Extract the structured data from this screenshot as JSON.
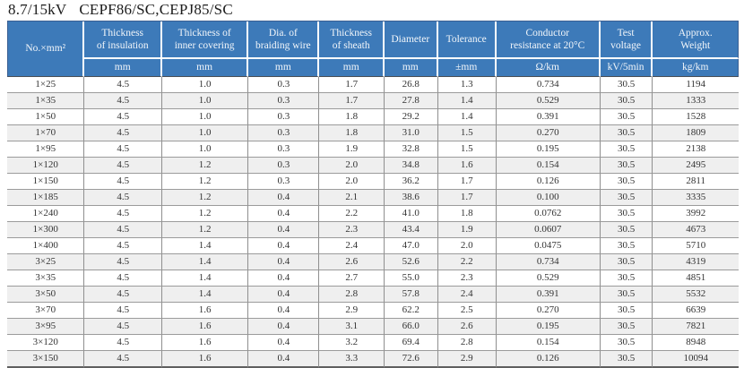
{
  "title": {
    "voltage": "8.7/15kV",
    "model": "CEPF86/SC,CEPJ85/SC"
  },
  "colors": {
    "header_bg": "#3d7ab9",
    "header_text": "#f2f6fa",
    "stripe": "#efefef",
    "grid": "#9b9b9b"
  },
  "table": {
    "corner_label": "No.×mm²",
    "columns": [
      {
        "label": "Thickness\nof insulation",
        "unit": "mm"
      },
      {
        "label": "Thickness of\ninner covering",
        "unit": "mm"
      },
      {
        "label": "Dia. of\nbraiding wire",
        "unit": "mm"
      },
      {
        "label": "Thickness\nof sheath",
        "unit": "mm"
      },
      {
        "label": "Diameter",
        "unit": "mm"
      },
      {
        "label": "Tolerance",
        "unit": "±mm"
      },
      {
        "label": "Conductor\nresistance at 20°C",
        "unit": "Ω/km"
      },
      {
        "label": "Test\nvoltage",
        "unit": "kV/5min"
      },
      {
        "label": "Approx.\nWeight",
        "unit": "kg/km"
      }
    ],
    "rows": [
      [
        "1×25",
        "4.5",
        "1.0",
        "0.3",
        "1.7",
        "26.8",
        "1.3",
        "0.734",
        "30.5",
        "1194"
      ],
      [
        "1×35",
        "4.5",
        "1.0",
        "0.3",
        "1.7",
        "27.8",
        "1.4",
        "0.529",
        "30.5",
        "1333"
      ],
      [
        "1×50",
        "4.5",
        "1.0",
        "0.3",
        "1.8",
        "29.2",
        "1.4",
        "0.391",
        "30.5",
        "1528"
      ],
      [
        "1×70",
        "4.5",
        "1.0",
        "0.3",
        "1.8",
        "31.0",
        "1.5",
        "0.270",
        "30.5",
        "1809"
      ],
      [
        "1×95",
        "4.5",
        "1.0",
        "0.3",
        "1.9",
        "32.8",
        "1.5",
        "0.195",
        "30.5",
        "2138"
      ],
      [
        "1×120",
        "4.5",
        "1.2",
        "0.3",
        "2.0",
        "34.8",
        "1.6",
        "0.154",
        "30.5",
        "2495"
      ],
      [
        "1×150",
        "4.5",
        "1.2",
        "0.3",
        "2.0",
        "36.2",
        "1.7",
        "0.126",
        "30.5",
        "2811"
      ],
      [
        "1×185",
        "4.5",
        "1.2",
        "0.4",
        "2.1",
        "38.6",
        "1.7",
        "0.100",
        "30.5",
        "3335"
      ],
      [
        "1×240",
        "4.5",
        "1.2",
        "0.4",
        "2.2",
        "41.0",
        "1.8",
        "0.0762",
        "30.5",
        "3992"
      ],
      [
        "1×300",
        "4.5",
        "1.2",
        "0.4",
        "2.3",
        "43.4",
        "1.9",
        "0.0607",
        "30.5",
        "4673"
      ],
      [
        "1×400",
        "4.5",
        "1.4",
        "0.4",
        "2.4",
        "47.0",
        "2.0",
        "0.0475",
        "30.5",
        "5710"
      ],
      [
        "3×25",
        "4.5",
        "1.4",
        "0.4",
        "2.6",
        "52.6",
        "2.2",
        "0.734",
        "30.5",
        "4319"
      ],
      [
        "3×35",
        "4.5",
        "1.4",
        "0.4",
        "2.7",
        "55.0",
        "2.3",
        "0.529",
        "30.5",
        "4851"
      ],
      [
        "3×50",
        "4.5",
        "1.4",
        "0.4",
        "2.8",
        "57.8",
        "2.4",
        "0.391",
        "30.5",
        "5532"
      ],
      [
        "3×70",
        "4.5",
        "1.6",
        "0.4",
        "2.9",
        "62.2",
        "2.5",
        "0.270",
        "30.5",
        "6639"
      ],
      [
        "3×95",
        "4.5",
        "1.6",
        "0.4",
        "3.1",
        "66.0",
        "2.6",
        "0.195",
        "30.5",
        "7821"
      ],
      [
        "3×120",
        "4.5",
        "1.6",
        "0.4",
        "3.2",
        "69.4",
        "2.8",
        "0.154",
        "30.5",
        "8948"
      ],
      [
        "3×150",
        "4.5",
        "1.6",
        "0.4",
        "3.3",
        "72.6",
        "2.9",
        "0.126",
        "30.5",
        "10094"
      ]
    ]
  }
}
